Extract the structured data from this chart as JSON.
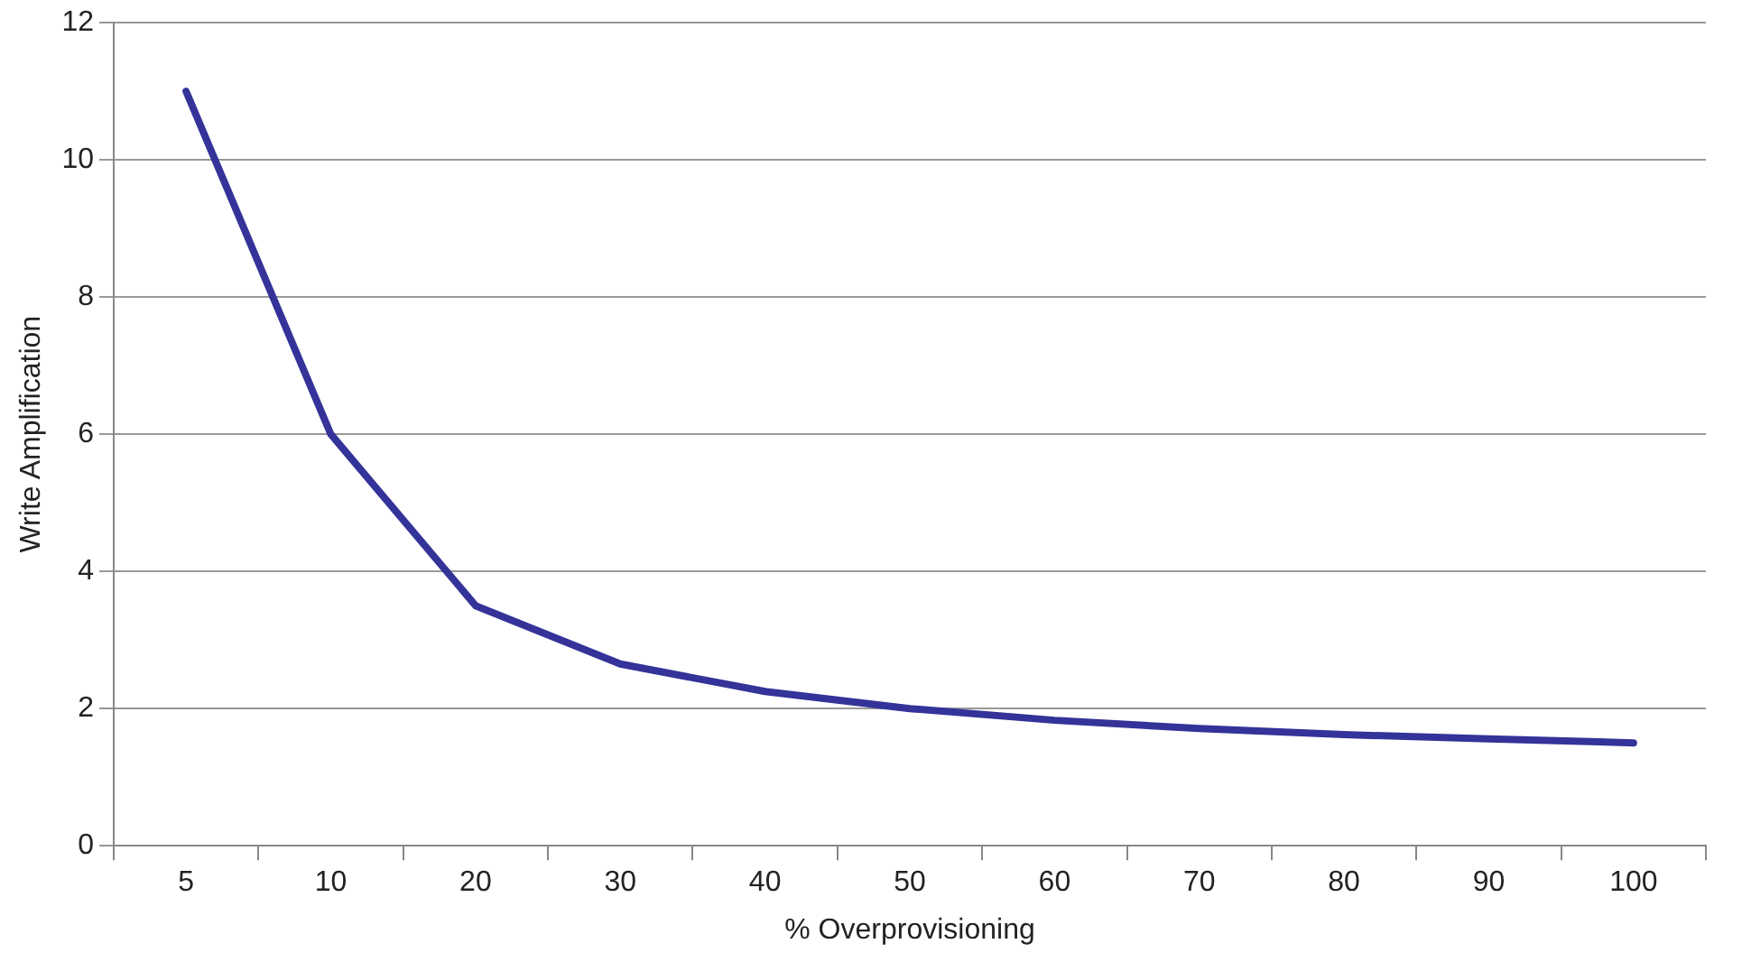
{
  "chart_data": {
    "type": "line",
    "xlabel": "% Overprovisioning",
    "ylabel": "Write Amplification",
    "categories": [
      "5",
      "10",
      "20",
      "30",
      "40",
      "50",
      "60",
      "70",
      "80",
      "90",
      "100"
    ],
    "series": [
      {
        "color": "#333399",
        "values": [
          11,
          6,
          3.5,
          2.65,
          2.25,
          2.0,
          1.83,
          1.71,
          1.62,
          1.56,
          1.5
        ]
      }
    ],
    "ylim": [
      0,
      12
    ],
    "yticks": [
      0,
      2,
      4,
      6,
      8,
      10,
      12
    ],
    "grid": "y",
    "legend": false,
    "marker": "none",
    "line_style": "solid"
  }
}
